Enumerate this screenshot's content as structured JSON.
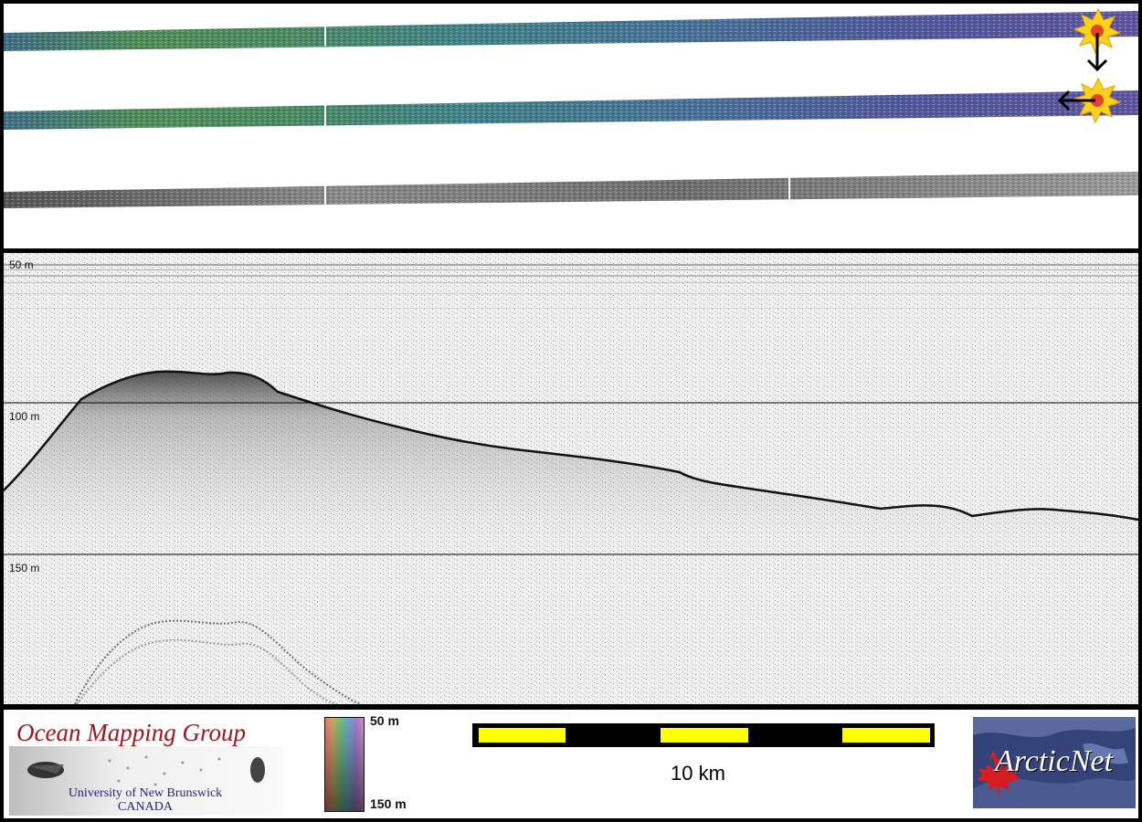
{
  "profile": {
    "depth_labels": [
      "50 m",
      "100 m",
      "150 m"
    ]
  },
  "footer": {
    "logo_title": "Ocean Mapping Group",
    "logo_subtitle_line1": "University of New Brunswick",
    "logo_subtitle_line2": "CANADA",
    "colorbar_top": "50 m",
    "colorbar_bottom": "150 m",
    "scale_label": "10 km",
    "arcticnet_logo_text": "ArcticNet"
  },
  "colors": {
    "bar_yellow": "#ffff00",
    "bar_black": "#000000",
    "omg_red": "#a3141c",
    "omg_blue": "#25247a",
    "arcticnet_bg": "#34447a",
    "maple_red": "#d81c22"
  }
}
